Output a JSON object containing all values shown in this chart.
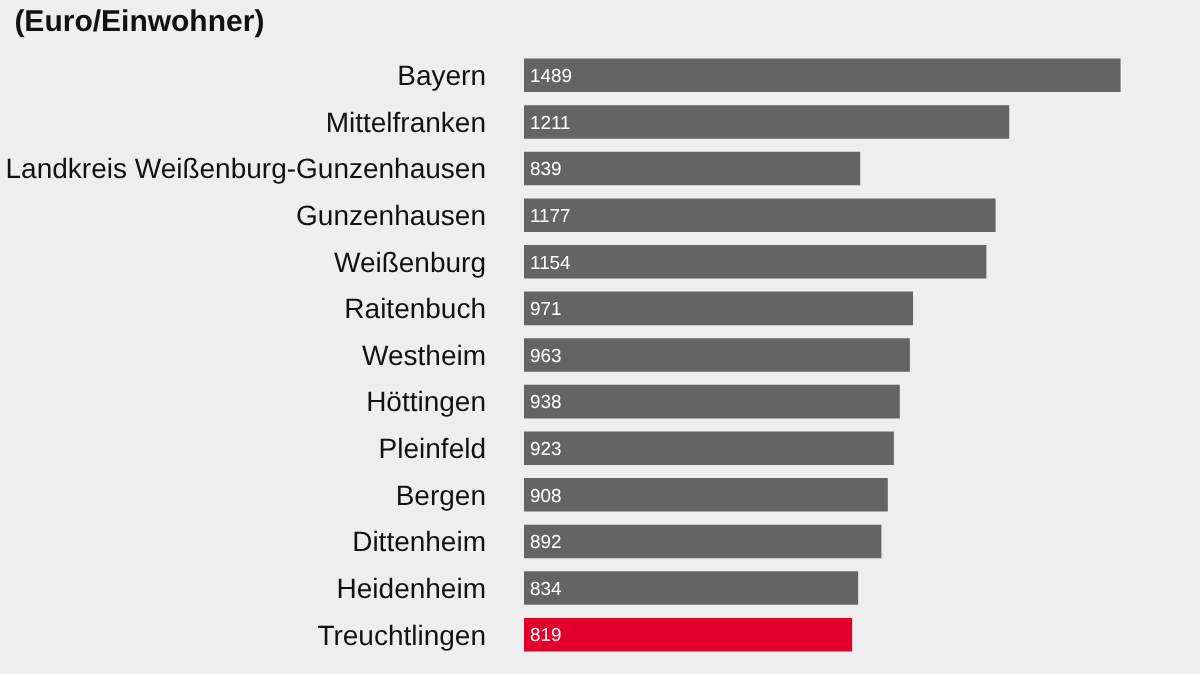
{
  "chart_data": {
    "type": "bar",
    "orientation": "horizontal",
    "title": "(Euro/Einwohner)",
    "categories": [
      "Bayern",
      "Mittelfranken",
      "Landkreis Weißenburg-Gunzenhausen",
      "Gunzenhausen",
      "Weißenburg",
      "Raitenbuch",
      "Westheim",
      "Höttingen",
      "Pleinfeld",
      "Bergen",
      "Dittenheim",
      "Heidenheim",
      "Treuchtlingen"
    ],
    "values": [
      1489,
      1211,
      839,
      1177,
      1154,
      971,
      963,
      938,
      923,
      908,
      892,
      834,
      819
    ],
    "colors": [
      "#646464",
      "#646464",
      "#646464",
      "#646464",
      "#646464",
      "#646464",
      "#646464",
      "#646464",
      "#646464",
      "#646464",
      "#646464",
      "#646464",
      "#e2002a"
    ],
    "tick_labels": "y",
    "data_labels": true,
    "grid": false,
    "legend": false
  }
}
